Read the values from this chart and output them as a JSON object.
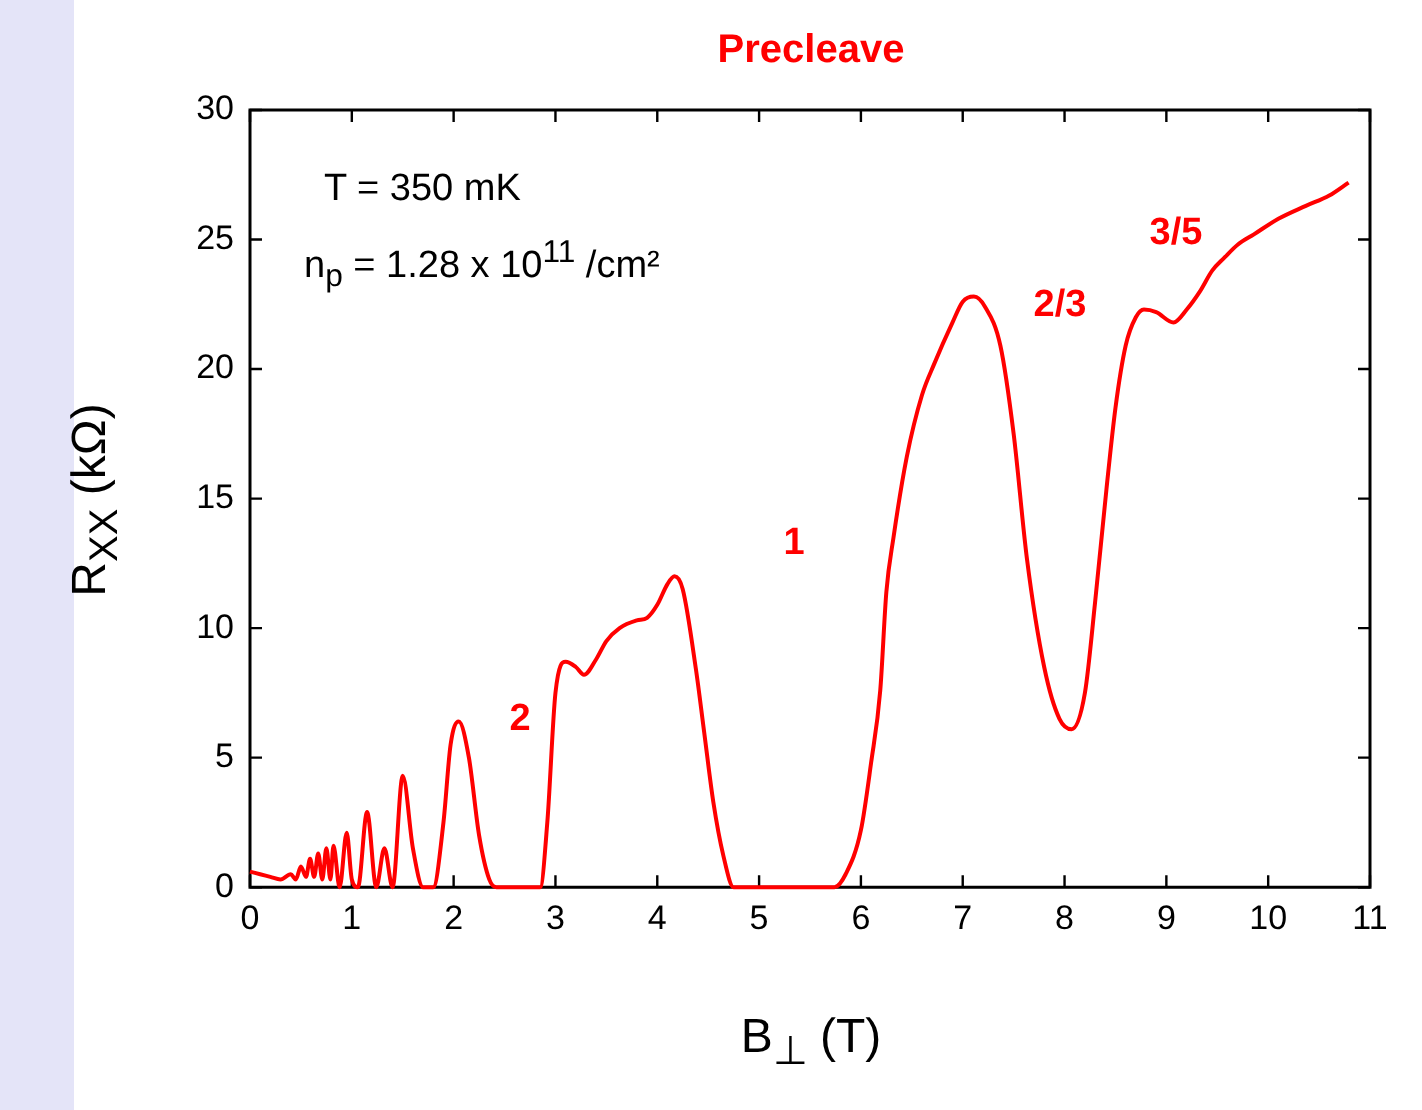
{
  "chart_data": {
    "type": "line",
    "title": "Precleave",
    "xlabel": "B$_{⊥}$ (T)",
    "ylabel": "R$_{XX}$ (kΩ)",
    "xlim": [
      0,
      11
    ],
    "xticks": [
      0,
      1,
      2,
      3,
      4,
      5,
      6,
      7,
      8,
      9,
      10,
      11
    ],
    "ylim": [
      0,
      30
    ],
    "yticks": [
      0,
      5,
      10,
      15,
      20,
      25,
      30
    ],
    "grid": false,
    "legend": false,
    "marker": "none",
    "line_style": "solid",
    "annotations": [
      "T = 350 mK",
      "n$_{p}$ = 1.28 x 10$^{11}$ /cm²",
      "2",
      "1",
      "2/3",
      "3/5"
    ],
    "series": [
      {
        "color": "#ff0000",
        "x": [
          0,
          0.1,
          0.2,
          0.3,
          0.4,
          0.45,
          0.5,
          0.55,
          0.59,
          0.63,
          0.67,
          0.71,
          0.75,
          0.79,
          0.82,
          0.88,
          0.95,
          1.0,
          1.06,
          1.15,
          1.24,
          1.32,
          1.4,
          1.5,
          1.6,
          1.7,
          1.8,
          1.9,
          1.97,
          2.05,
          2.15,
          2.25,
          2.35,
          2.42,
          2.6,
          2.85,
          2.92,
          3.0,
          3.1,
          3.2,
          3.28,
          3.4,
          3.5,
          3.63,
          3.8,
          3.9,
          4.0,
          4.1,
          4.17,
          4.25,
          4.38,
          4.46,
          4.55,
          4.65,
          4.75,
          5.0,
          5.5,
          5.74,
          5.85,
          6.0,
          6.1,
          6.19,
          6.25,
          6.32,
          6.45,
          6.6,
          6.72,
          6.9,
          7.0,
          7.11,
          7.22,
          7.37,
          7.5,
          7.63,
          7.8,
          7.95,
          8.07,
          8.2,
          8.3,
          8.41,
          8.5,
          8.6,
          8.7,
          8.78,
          8.9,
          9.07,
          9.2,
          9.33,
          9.45,
          9.57,
          9.7,
          9.86,
          10.1,
          10.37,
          10.6,
          10.79
        ],
        "values": [
          0.6,
          0.5,
          0.4,
          0.3,
          0.5,
          0.3,
          0.8,
          0.4,
          1.1,
          0.4,
          1.3,
          0.3,
          1.5,
          0.3,
          1.6,
          0,
          2.1,
          0.3,
          0,
          2.9,
          0,
          1.5,
          0,
          4.3,
          1.5,
          0,
          0,
          2.5,
          5.5,
          6.4,
          5,
          2,
          0.3,
          0,
          0,
          0,
          2.5,
          7.5,
          8.7,
          8.5,
          8.2,
          8.8,
          9.5,
          10,
          10.3,
          10.4,
          10.9,
          11.7,
          12,
          11.5,
          8.4,
          6,
          3.3,
          1.2,
          0,
          0,
          0,
          0,
          0.5,
          2.2,
          4.8,
          7.6,
          11.4,
          13.5,
          16.6,
          19,
          20.2,
          21.8,
          22.6,
          22.8,
          22.4,
          20.9,
          17.5,
          12.7,
          8.5,
          6.5,
          6.1,
          7.5,
          11,
          15.3,
          18.5,
          20.9,
          22,
          22.3,
          22.2,
          21.8,
          22.3,
          23,
          23.8,
          24.3,
          24.8,
          25.2,
          25.8,
          26.3,
          26.7,
          27.2
        ]
      }
    ]
  }
}
